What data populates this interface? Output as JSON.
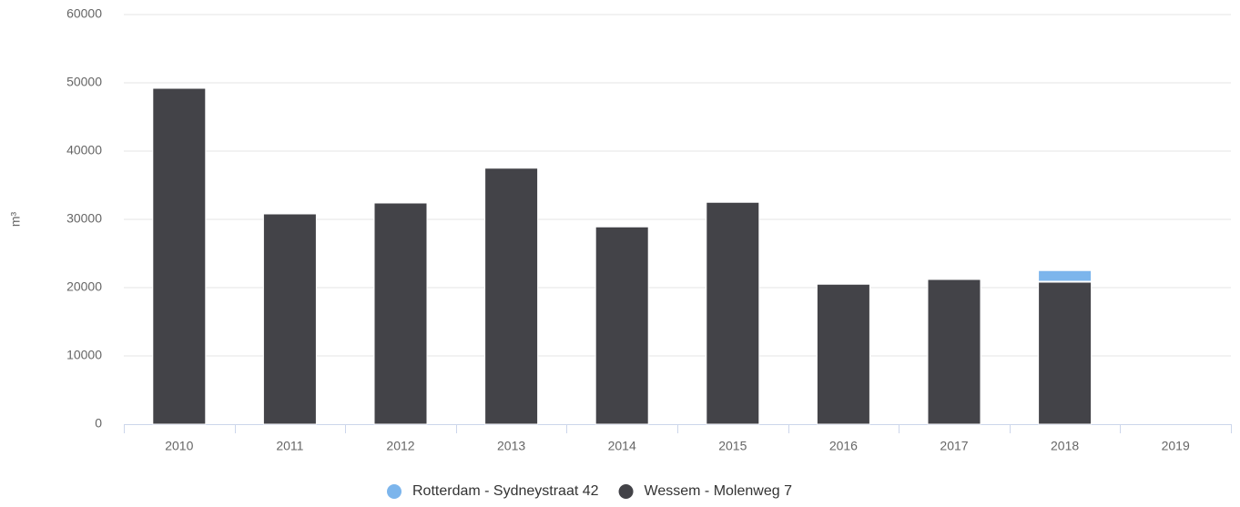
{
  "chart_data": {
    "type": "bar",
    "stacked": true,
    "y_label": "m³",
    "categories": [
      "2010",
      "2011",
      "2012",
      "2013",
      "2014",
      "2015",
      "2016",
      "2017",
      "2018",
      "2019"
    ],
    "series": [
      {
        "name": "Rotterdam - Sydneystraat 42",
        "color": "#7cb5ec",
        "values": [
          null,
          null,
          null,
          null,
          null,
          null,
          null,
          null,
          1700,
          null
        ]
      },
      {
        "name": "Wessem - Molenweg 7",
        "color": "#434348",
        "values": [
          49200,
          30800,
          32400,
          37500,
          28900,
          32500,
          20500,
          21200,
          20800,
          null
        ]
      }
    ],
    "ylim": [
      0,
      60000
    ],
    "yticks": [
      0,
      10000,
      20000,
      30000,
      40000,
      50000,
      60000
    ],
    "grid": true
  }
}
